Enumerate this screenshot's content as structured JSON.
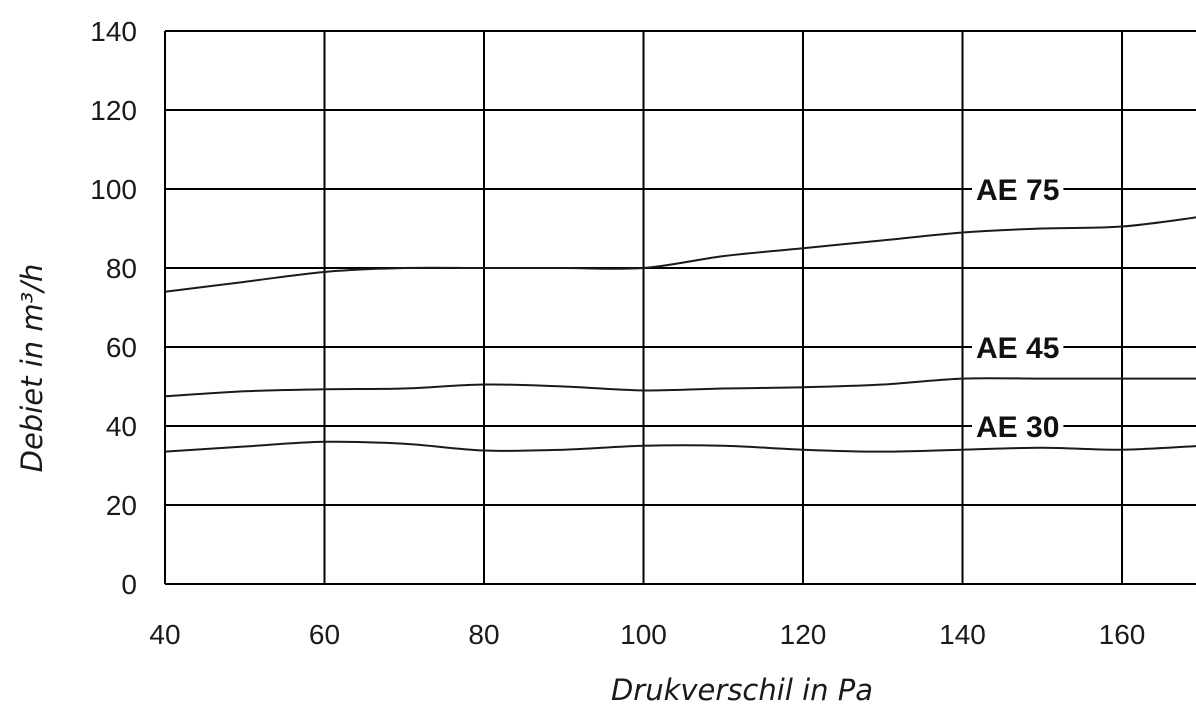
{
  "chart_data": {
    "type": "line",
    "title": "",
    "xlabel": "Drukverschil in Pa",
    "ylabel": "Debiet in m³/h",
    "xlim": [
      40,
      170
    ],
    "ylim": [
      0,
      140
    ],
    "x_ticks": [
      40,
      60,
      80,
      100,
      120,
      140,
      160
    ],
    "y_ticks": [
      0,
      20,
      40,
      60,
      80,
      100,
      120,
      140
    ],
    "grid": true,
    "legend": "inline labels on right",
    "series": [
      {
        "name": "AE 75",
        "x": [
          40,
          50,
          60,
          70,
          80,
          90,
          100,
          110,
          120,
          130,
          140,
          150,
          160,
          170
        ],
        "y": [
          74,
          76.5,
          79,
          80,
          80,
          80,
          80,
          83,
          85,
          87,
          89,
          90,
          90.5,
          93
        ]
      },
      {
        "name": "AE 45",
        "x": [
          40,
          50,
          60,
          70,
          80,
          90,
          100,
          110,
          120,
          130,
          140,
          150,
          160,
          170
        ],
        "y": [
          47.5,
          48.8,
          49.3,
          49.5,
          50.5,
          50,
          49,
          49.5,
          49.8,
          50.5,
          52,
          52,
          52,
          52
        ]
      },
      {
        "name": "AE 30",
        "x": [
          40,
          50,
          60,
          70,
          80,
          90,
          100,
          110,
          120,
          130,
          140,
          150,
          160,
          170
        ],
        "y": [
          33.5,
          34.8,
          36,
          35.5,
          33.8,
          34,
          35,
          35,
          34,
          33.5,
          34,
          34.5,
          34,
          35
        ]
      }
    ]
  }
}
